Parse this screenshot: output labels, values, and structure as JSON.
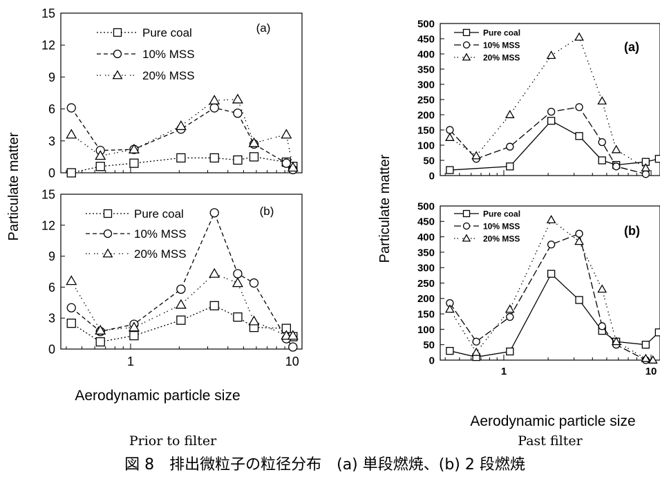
{
  "figure": {
    "left_ylabel": "Particulate matter",
    "right_ylabel": "Particulate matter",
    "left_xlabel": "Aerodynamic particle size",
    "right_xlabel": "Aerodynamic particle size",
    "left_caption": "Prior to filter",
    "right_caption": "Past filter",
    "main_caption": "図 8　排出微粒子の粒径分布　(a) 単段燃焼、(b) 2 段燃焼"
  },
  "chart_data": [
    {
      "panel": "(a)",
      "group": "Prior to filter",
      "type": "line",
      "xscale": "log",
      "xlim": [
        0.37,
        11.5
      ],
      "ylim": [
        0,
        15
      ],
      "yticks": [
        0,
        3,
        6,
        9,
        12,
        15
      ],
      "xticks": [
        1,
        10
      ],
      "legend_position": "top-left",
      "series": [
        {
          "name": "Pure coal",
          "marker": "square",
          "dash": "dotted",
          "x": [
            0.43,
            0.65,
            1.05,
            2.05,
            3.3,
            4.6,
            5.8,
            9.2,
            10.1
          ],
          "y": [
            0.0,
            0.6,
            0.9,
            1.4,
            1.4,
            1.2,
            1.5,
            1.0,
            0.6
          ]
        },
        {
          "name": "10% MSS",
          "marker": "circle",
          "dash": "dashed",
          "x": [
            0.43,
            0.65,
            1.05,
            2.05,
            3.3,
            4.6,
            5.8,
            9.2,
            10.1
          ],
          "y": [
            6.1,
            2.1,
            2.2,
            4.1,
            6.1,
            5.6,
            2.7,
            0.9,
            0.3
          ]
        },
        {
          "name": "20% MSS",
          "marker": "triangle",
          "dash": "dashdot",
          "x": [
            0.43,
            0.65,
            1.05,
            2.05,
            3.3,
            4.6,
            5.8,
            9.2,
            10.1
          ],
          "y": [
            3.6,
            1.6,
            2.2,
            4.4,
            6.8,
            6.9,
            2.8,
            3.6,
            0.5
          ]
        }
      ]
    },
    {
      "panel": "(b)",
      "group": "Prior to filter",
      "type": "line",
      "xscale": "log",
      "xlim": [
        0.37,
        11.5
      ],
      "ylim": [
        0,
        15
      ],
      "yticks": [
        0,
        3,
        6,
        9,
        12,
        15
      ],
      "xticks": [
        1,
        10
      ],
      "xticklabels": [
        "1",
        "10"
      ],
      "legend_position": "top-left",
      "series": [
        {
          "name": "Pure coal",
          "marker": "square",
          "dash": "dotted",
          "x": [
            0.43,
            0.65,
            1.05,
            2.05,
            3.3,
            4.6,
            5.8,
            9.2,
            10.1
          ],
          "y": [
            2.5,
            0.7,
            1.3,
            2.8,
            4.2,
            3.1,
            2.1,
            2.0,
            1.2
          ]
        },
        {
          "name": "10% MSS",
          "marker": "circle",
          "dash": "dashed",
          "x": [
            0.43,
            0.65,
            1.05,
            2.05,
            3.3,
            4.6,
            5.8,
            9.2,
            10.1
          ],
          "y": [
            4.0,
            1.7,
            2.4,
            5.8,
            13.2,
            7.3,
            6.4,
            1.0,
            0.2
          ]
        },
        {
          "name": "20% MSS",
          "marker": "triangle",
          "dash": "dashdot",
          "x": [
            0.43,
            0.65,
            1.05,
            2.05,
            3.3,
            4.6,
            5.8,
            9.2,
            10.1
          ],
          "y": [
            6.6,
            1.8,
            2.1,
            4.3,
            7.3,
            6.4,
            2.7,
            1.3,
            1.3
          ]
        }
      ]
    },
    {
      "panel": "(a)",
      "group": "Past filter",
      "type": "line",
      "xscale": "log",
      "xlim": [
        0.37,
        11.5
      ],
      "ylim": [
        0,
        500
      ],
      "yticks": [
        0,
        50,
        100,
        150,
        200,
        250,
        300,
        350,
        400,
        450,
        500
      ],
      "xticks": [
        1,
        10
      ],
      "legend_position": "top-left",
      "series": [
        {
          "name": "Pure coal",
          "marker": "square",
          "dash": "solid",
          "x": [
            0.43,
            1.1,
            2.1,
            3.25,
            4.65,
            5.8,
            9.2,
            11.3
          ],
          "y": [
            18,
            30,
            180,
            130,
            50,
            35,
            45,
            55
          ]
        },
        {
          "name": "10% MSS",
          "marker": "circle",
          "dash": "longdash",
          "x": [
            0.43,
            0.65,
            1.1,
            2.1,
            3.25,
            4.65,
            5.8,
            9.2
          ],
          "y": [
            150,
            55,
            95,
            210,
            225,
            110,
            30,
            5
          ]
        },
        {
          "name": "20% MSS",
          "marker": "triangle",
          "dash": "dashdot",
          "x": [
            0.43,
            0.65,
            1.1,
            2.1,
            3.25,
            4.65,
            5.8,
            9.2
          ],
          "y": [
            125,
            65,
            200,
            395,
            455,
            245,
            85,
            25
          ]
        }
      ]
    },
    {
      "panel": "(b)",
      "group": "Past filter",
      "type": "line",
      "xscale": "log",
      "xlim": [
        0.37,
        11.5
      ],
      "ylim": [
        0,
        500
      ],
      "yticks": [
        0,
        50,
        100,
        150,
        200,
        250,
        300,
        350,
        400,
        450,
        500
      ],
      "xticks": [
        1,
        10
      ],
      "xticklabels": [
        "1",
        "10"
      ],
      "legend_position": "top-left",
      "series": [
        {
          "name": "Pure coal",
          "marker": "square",
          "dash": "solid",
          "x": [
            0.43,
            0.65,
            1.1,
            2.1,
            3.25,
            4.65,
            5.8,
            9.2,
            11.3
          ],
          "y": [
            30,
            10,
            28,
            280,
            195,
            95,
            60,
            50,
            90
          ]
        },
        {
          "name": "10% MSS",
          "marker": "circle",
          "dash": "longdash",
          "x": [
            0.43,
            0.65,
            1.1,
            2.1,
            3.25,
            4.65,
            5.8,
            9.2
          ],
          "y": [
            185,
            60,
            140,
            375,
            410,
            110,
            50,
            0
          ]
        },
        {
          "name": "20% MSS",
          "marker": "triangle",
          "dash": "dashdot",
          "x": [
            0.43,
            0.65,
            1.1,
            2.1,
            3.25,
            4.65,
            5.8,
            9.2,
            10.3
          ],
          "y": [
            165,
            25,
            165,
            455,
            385,
            230,
            60,
            5,
            0
          ]
        }
      ]
    }
  ]
}
